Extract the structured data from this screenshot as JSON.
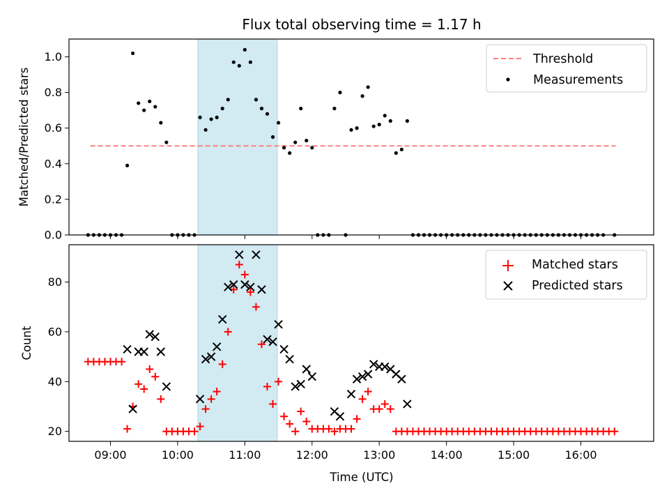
{
  "chart_data": [
    {
      "type": "scatter",
      "panel": "top",
      "title": "Flux total observing time = 1.17 h",
      "ylabel": "Matched/Predicted stars",
      "ylim": [
        0,
        1.1
      ],
      "yticks": [
        0.0,
        0.2,
        0.4,
        0.6,
        0.8,
        1.0
      ],
      "ytick_labels": [
        "0.0",
        "0.2",
        "0.4",
        "0.6",
        "0.8",
        "1.0"
      ],
      "xlim": [
        "08:23",
        "17:05"
      ],
      "legend_position": "top-right",
      "highlight_band": {
        "from": "10:18",
        "to": "11:29",
        "color": "#add8e6"
      },
      "threshold": {
        "name": "Threshold",
        "value": 0.5,
        "from": "08:42",
        "to": "16:31",
        "color": "#ff7f7f",
        "style": "dashed"
      },
      "series": [
        {
          "name": "Measurements",
          "color": "#000000",
          "points": [
            [
              "08:40",
              0
            ],
            [
              "08:45",
              0
            ],
            [
              "08:50",
              0
            ],
            [
              "08:55",
              0
            ],
            [
              "09:00",
              0
            ],
            [
              "09:05",
              0
            ],
            [
              "09:10",
              0
            ],
            [
              "09:15",
              0.39
            ],
            [
              "09:20",
              1.02
            ],
            [
              "09:25",
              0.74
            ],
            [
              "09:30",
              0.7
            ],
            [
              "09:35",
              0.75
            ],
            [
              "09:40",
              0.72
            ],
            [
              "09:45",
              0.63
            ],
            [
              "09:50",
              0.52
            ],
            [
              "09:55",
              0
            ],
            [
              "10:00",
              0
            ],
            [
              "10:05",
              0
            ],
            [
              "10:10",
              0
            ],
            [
              "10:15",
              0
            ],
            [
              "10:20",
              0.66
            ],
            [
              "10:25",
              0.59
            ],
            [
              "10:30",
              0.65
            ],
            [
              "10:35",
              0.66
            ],
            [
              "10:40",
              0.71
            ],
            [
              "10:45",
              0.76
            ],
            [
              "10:50",
              0.97
            ],
            [
              "10:55",
              0.95
            ],
            [
              "11:00",
              1.04
            ],
            [
              "11:05",
              0.97
            ],
            [
              "11:10",
              0.76
            ],
            [
              "11:15",
              0.71
            ],
            [
              "11:20",
              0.68
            ],
            [
              "11:25",
              0.55
            ],
            [
              "11:30",
              0.63
            ],
            [
              "11:35",
              0.49
            ],
            [
              "11:40",
              0.46
            ],
            [
              "11:45",
              0.52
            ],
            [
              "11:50",
              0.71
            ],
            [
              "11:55",
              0.53
            ],
            [
              "12:00",
              0.49
            ],
            [
              "12:05",
              0
            ],
            [
              "12:10",
              0
            ],
            [
              "12:15",
              0
            ],
            [
              "12:20",
              0.71
            ],
            [
              "12:25",
              0.8
            ],
            [
              "12:30",
              0
            ],
            [
              "12:35",
              0.59
            ],
            [
              "12:40",
              0.6
            ],
            [
              "12:45",
              0.78
            ],
            [
              "12:50",
              0.83
            ],
            [
              "12:55",
              0.61
            ],
            [
              "13:00",
              0.62
            ],
            [
              "13:05",
              0.67
            ],
            [
              "13:10",
              0.64
            ],
            [
              "13:15",
              0.46
            ],
            [
              "13:20",
              0.48
            ],
            [
              "13:25",
              0.64
            ],
            [
              "13:30",
              0
            ],
            [
              "13:35",
              0
            ],
            [
              "13:40",
              0
            ],
            [
              "13:45",
              0
            ],
            [
              "13:50",
              0
            ],
            [
              "13:55",
              0
            ],
            [
              "14:00",
              0
            ],
            [
              "14:05",
              0
            ],
            [
              "14:10",
              0
            ],
            [
              "14:15",
              0
            ],
            [
              "14:20",
              0
            ],
            [
              "14:25",
              0
            ],
            [
              "14:30",
              0
            ],
            [
              "14:35",
              0
            ],
            [
              "14:40",
              0
            ],
            [
              "14:45",
              0
            ],
            [
              "14:50",
              0
            ],
            [
              "14:55",
              0
            ],
            [
              "15:00",
              0
            ],
            [
              "15:05",
              0
            ],
            [
              "15:10",
              0
            ],
            [
              "15:15",
              0
            ],
            [
              "15:20",
              0
            ],
            [
              "15:25",
              0
            ],
            [
              "15:30",
              0
            ],
            [
              "15:35",
              0
            ],
            [
              "15:40",
              0
            ],
            [
              "15:45",
              0
            ],
            [
              "15:50",
              0
            ],
            [
              "15:55",
              0
            ],
            [
              "16:00",
              0
            ],
            [
              "16:05",
              0
            ],
            [
              "16:10",
              0
            ],
            [
              "16:15",
              0
            ],
            [
              "16:20",
              0
            ],
            [
              "16:30",
              0
            ]
          ]
        }
      ]
    },
    {
      "type": "scatter",
      "panel": "bottom",
      "xlabel": "Time (UTC)",
      "ylabel": "Count",
      "ylim": [
        16,
        95
      ],
      "yticks": [
        20,
        40,
        60,
        80
      ],
      "ytick_labels": [
        "20",
        "40",
        "60",
        "80"
      ],
      "xlim": [
        "08:23",
        "17:05"
      ],
      "xticks": [
        "09:00",
        "10:00",
        "11:00",
        "12:00",
        "13:00",
        "14:00",
        "15:00",
        "16:00"
      ],
      "legend_position": "top-right",
      "highlight_band": {
        "from": "10:18",
        "to": "11:29",
        "color": "#add8e6"
      },
      "series": [
        {
          "name": "Matched stars",
          "color": "#ff0000",
          "marker": "plus",
          "points": [
            [
              "08:40",
              48
            ],
            [
              "08:45",
              48
            ],
            [
              "08:50",
              48
            ],
            [
              "08:55",
              48
            ],
            [
              "09:00",
              48
            ],
            [
              "09:05",
              48
            ],
            [
              "09:10",
              48
            ],
            [
              "09:15",
              21
            ],
            [
              "09:20",
              30
            ],
            [
              "09:25",
              39
            ],
            [
              "09:30",
              37
            ],
            [
              "09:35",
              45
            ],
            [
              "09:40",
              42
            ],
            [
              "09:45",
              33
            ],
            [
              "09:50",
              20
            ],
            [
              "09:55",
              20
            ],
            [
              "10:00",
              20
            ],
            [
              "10:05",
              20
            ],
            [
              "10:10",
              20
            ],
            [
              "10:15",
              20
            ],
            [
              "10:20",
              22
            ],
            [
              "10:25",
              29
            ],
            [
              "10:30",
              33
            ],
            [
              "10:35",
              36
            ],
            [
              "10:40",
              47
            ],
            [
              "10:45",
              60
            ],
            [
              "10:50",
              77
            ],
            [
              "10:55",
              87
            ],
            [
              "11:00",
              83
            ],
            [
              "11:05",
              76
            ],
            [
              "11:10",
              70
            ],
            [
              "11:15",
              55
            ],
            [
              "11:20",
              38
            ],
            [
              "11:25",
              31
            ],
            [
              "11:30",
              40
            ],
            [
              "11:35",
              26
            ],
            [
              "11:40",
              23
            ],
            [
              "11:45",
              20
            ],
            [
              "11:50",
              28
            ],
            [
              "11:55",
              24
            ],
            [
              "12:00",
              21
            ],
            [
              "12:05",
              21
            ],
            [
              "12:10",
              21
            ],
            [
              "12:15",
              21
            ],
            [
              "12:20",
              20
            ],
            [
              "12:25",
              21
            ],
            [
              "12:30",
              21
            ],
            [
              "12:35",
              21
            ],
            [
              "12:40",
              25
            ],
            [
              "12:45",
              33
            ],
            [
              "12:50",
              36
            ],
            [
              "12:55",
              29
            ],
            [
              "13:00",
              29
            ],
            [
              "13:05",
              31
            ],
            [
              "13:10",
              29
            ],
            [
              "13:15",
              20
            ],
            [
              "13:20",
              20
            ],
            [
              "13:25",
              20
            ],
            [
              "13:30",
              20
            ],
            [
              "13:35",
              20
            ],
            [
              "13:40",
              20
            ],
            [
              "13:45",
              20
            ],
            [
              "13:50",
              20
            ],
            [
              "13:55",
              20
            ],
            [
              "14:00",
              20
            ],
            [
              "14:05",
              20
            ],
            [
              "14:10",
              20
            ],
            [
              "14:15",
              20
            ],
            [
              "14:20",
              20
            ],
            [
              "14:25",
              20
            ],
            [
              "14:30",
              20
            ],
            [
              "14:35",
              20
            ],
            [
              "14:40",
              20
            ],
            [
              "14:45",
              20
            ],
            [
              "14:50",
              20
            ],
            [
              "14:55",
              20
            ],
            [
              "15:00",
              20
            ],
            [
              "15:05",
              20
            ],
            [
              "15:10",
              20
            ],
            [
              "15:15",
              20
            ],
            [
              "15:20",
              20
            ],
            [
              "15:25",
              20
            ],
            [
              "15:30",
              20
            ],
            [
              "15:35",
              20
            ],
            [
              "15:40",
              20
            ],
            [
              "15:45",
              20
            ],
            [
              "15:50",
              20
            ],
            [
              "15:55",
              20
            ],
            [
              "16:00",
              20
            ],
            [
              "16:05",
              20
            ],
            [
              "16:10",
              20
            ],
            [
              "16:15",
              20
            ],
            [
              "16:20",
              20
            ],
            [
              "16:25",
              20
            ],
            [
              "16:30",
              20
            ]
          ]
        },
        {
          "name": "Predicted stars",
          "color": "#000000",
          "marker": "x",
          "points": [
            [
              "09:15",
              53
            ],
            [
              "09:20",
              29
            ],
            [
              "09:25",
              52
            ],
            [
              "09:30",
              52
            ],
            [
              "09:35",
              59
            ],
            [
              "09:40",
              58
            ],
            [
              "09:45",
              52
            ],
            [
              "09:50",
              38
            ],
            [
              "10:20",
              33
            ],
            [
              "10:25",
              49
            ],
            [
              "10:30",
              50
            ],
            [
              "10:35",
              54
            ],
            [
              "10:40",
              65
            ],
            [
              "10:45",
              78
            ],
            [
              "10:50",
              79
            ],
            [
              "10:55",
              91
            ],
            [
              "11:00",
              79
            ],
            [
              "11:05",
              78
            ],
            [
              "11:10",
              91
            ],
            [
              "11:15",
              77
            ],
            [
              "11:20",
              57
            ],
            [
              "11:25",
              56
            ],
            [
              "11:30",
              63
            ],
            [
              "11:35",
              53
            ],
            [
              "11:40",
              49
            ],
            [
              "11:45",
              38
            ],
            [
              "11:50",
              39
            ],
            [
              "11:55",
              45
            ],
            [
              "12:00",
              42
            ],
            [
              "12:20",
              28
            ],
            [
              "12:25",
              26
            ],
            [
              "12:35",
              35
            ],
            [
              "12:40",
              41
            ],
            [
              "12:45",
              42
            ],
            [
              "12:50",
              43
            ],
            [
              "12:55",
              47
            ],
            [
              "13:00",
              46
            ],
            [
              "13:05",
              46
            ],
            [
              "13:10",
              45
            ],
            [
              "13:15",
              43
            ],
            [
              "13:20",
              41
            ],
            [
              "13:25",
              31
            ]
          ]
        }
      ]
    }
  ]
}
